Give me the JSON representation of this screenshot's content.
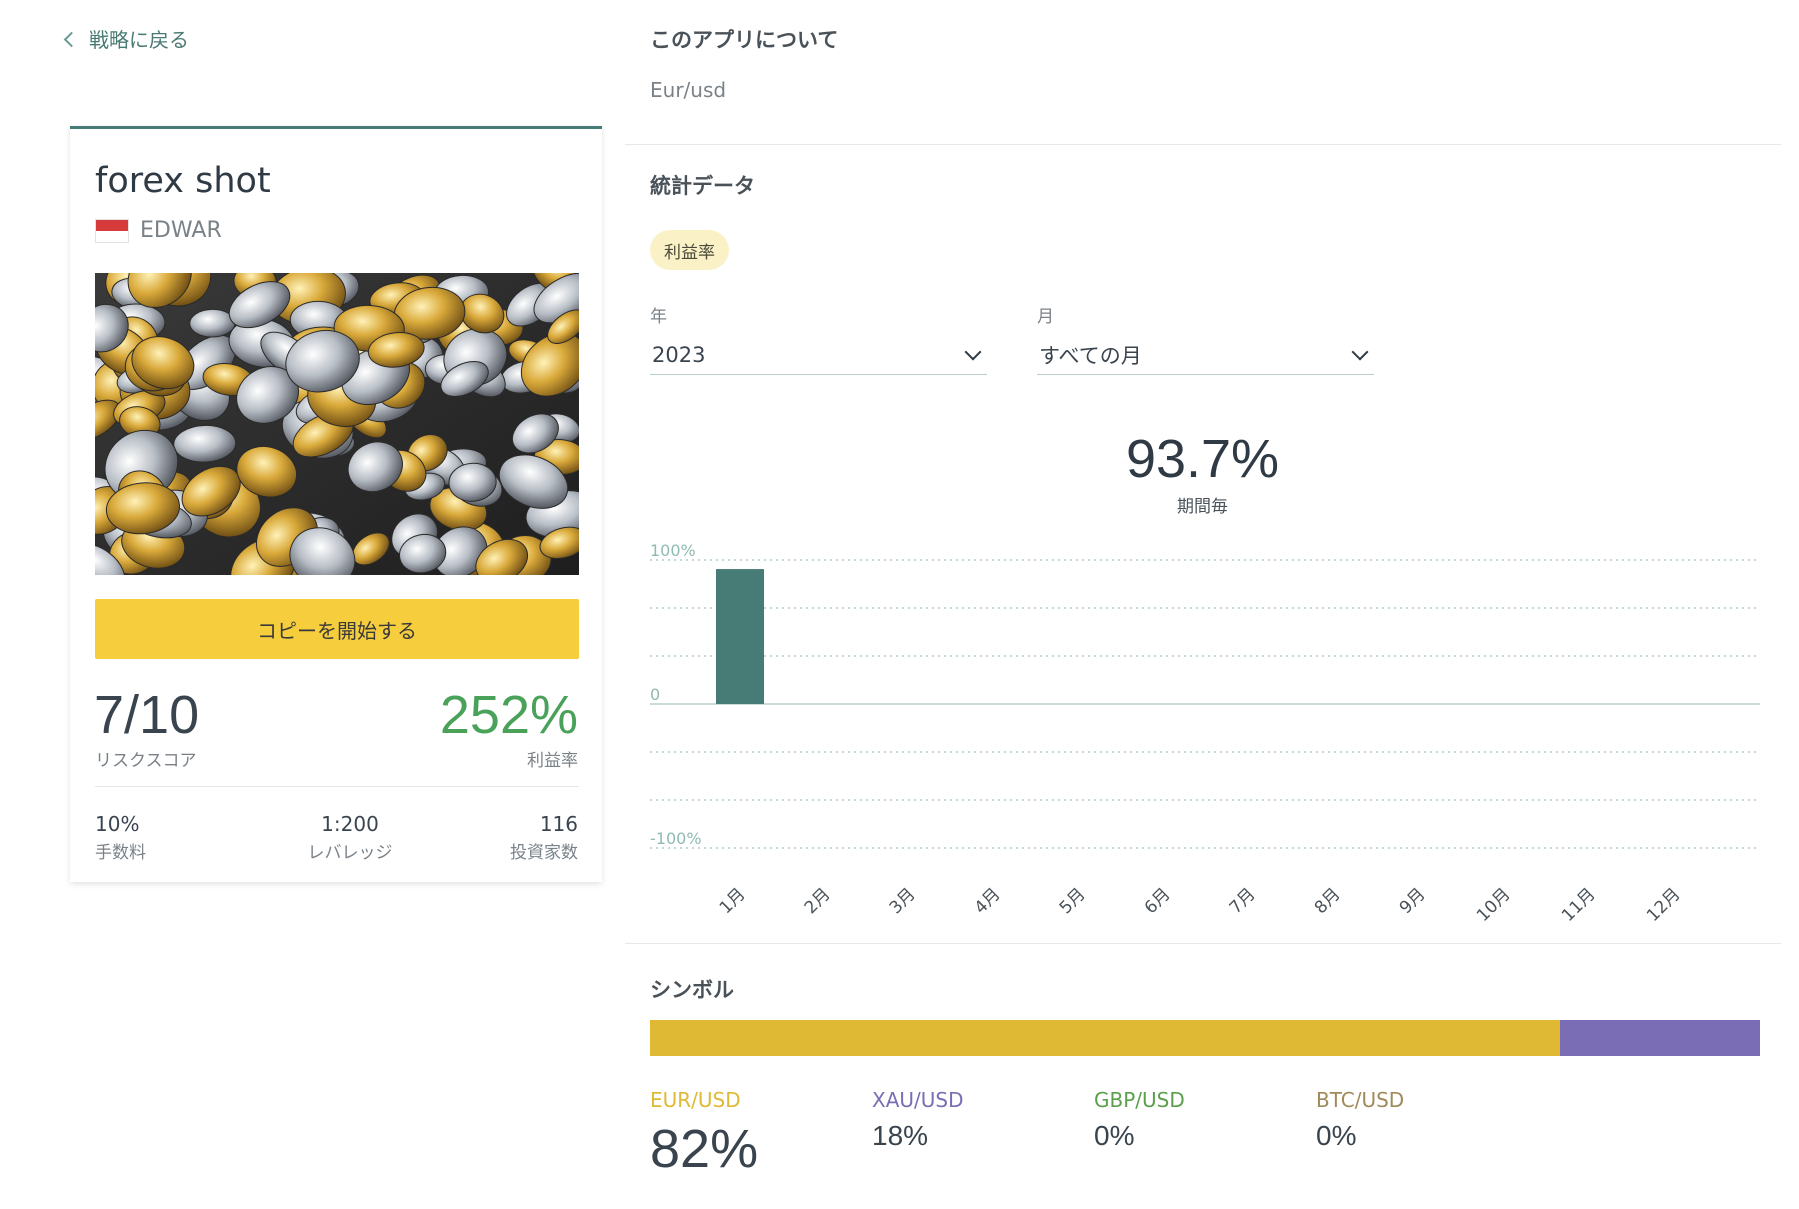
{
  "nav": {
    "back_label": "戦略に戻る"
  },
  "strategy": {
    "title": "forex shot",
    "author": "EDWAR",
    "copy_button": "コピーを開始する",
    "risk_score": "7/10",
    "risk_label": "リスクスコア",
    "profit": "252%",
    "profit_label": "利益率",
    "stats": [
      {
        "value": "10%",
        "label": "手数料"
      },
      {
        "value": "1:200",
        "label": "レバレッジ"
      },
      {
        "value": "116",
        "label": "投資家数"
      }
    ]
  },
  "about": {
    "title": "このアプリについて",
    "text": "Eur/usd"
  },
  "statistics": {
    "title": "統計データ",
    "tab": "利益率",
    "year_label": "年",
    "year_value": "2023",
    "month_label": "月",
    "month_value": "すべての月",
    "period_value": "93.7%",
    "period_label": "期間毎"
  },
  "chart_data": {
    "type": "bar",
    "categories": [
      "1月",
      "2月",
      "3月",
      "4月",
      "5月",
      "6月",
      "7月",
      "8月",
      "9月",
      "10月",
      "11月",
      "12月"
    ],
    "values": [
      93.7,
      0,
      0,
      0,
      0,
      0,
      0,
      0,
      0,
      0,
      0,
      0
    ],
    "tick_labels": [
      "100%",
      "0",
      "-100%"
    ],
    "ylim": [
      -100,
      100
    ],
    "bar_color": "#477b76",
    "grid": true
  },
  "symbols": {
    "title": "シンボル",
    "items": [
      {
        "name": "EUR/USD",
        "percent": "82%",
        "share": 82,
        "color": "#e0b934"
      },
      {
        "name": "XAU/USD",
        "percent": "18%",
        "share": 18,
        "color": "#7b6db5"
      },
      {
        "name": "GBP/USD",
        "percent": "0%",
        "share": 0,
        "color": "#5aa04a"
      },
      {
        "name": "BTC/USD",
        "percent": "0%",
        "share": 0,
        "color": "#a08a5a"
      }
    ]
  }
}
